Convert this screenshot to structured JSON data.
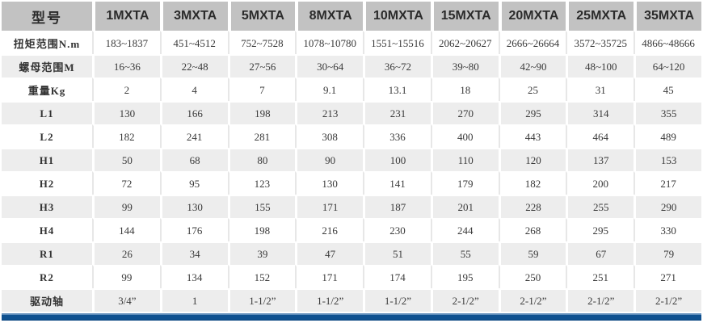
{
  "chart_data": {
    "type": "table",
    "header_label": "型号",
    "columns": [
      "1MXTA",
      "3MXTA",
      "5MXTA",
      "8MXTA",
      "10MXTA",
      "15MXTA",
      "20MXTA",
      "25MXTA",
      "35MXTA"
    ],
    "rows": [
      {
        "label": "扭矩范围N.m",
        "values": [
          "183~1837",
          "451~4512",
          "752~7528",
          "1078~10780",
          "1551~15516",
          "2062~20627",
          "2666~26664",
          "3572~35725",
          "4866~48666"
        ]
      },
      {
        "label": "螺母范围M",
        "values": [
          "16~36",
          "22~48",
          "27~56",
          "30~64",
          "36~72",
          "39~80",
          "42~90",
          "48~100",
          "64~120"
        ]
      },
      {
        "label": "重量Kg",
        "values": [
          "2",
          "4",
          "7",
          "9.1",
          "13.1",
          "18",
          "25",
          "31",
          "45"
        ]
      },
      {
        "label": "L1",
        "values": [
          "130",
          "166",
          "198",
          "213",
          "231",
          "270",
          "295",
          "314",
          "355"
        ]
      },
      {
        "label": "L2",
        "values": [
          "182",
          "241",
          "281",
          "308",
          "336",
          "400",
          "443",
          "464",
          "489"
        ]
      },
      {
        "label": "H1",
        "values": [
          "50",
          "68",
          "80",
          "90",
          "100",
          "110",
          "120",
          "137",
          "153"
        ]
      },
      {
        "label": "H2",
        "values": [
          "72",
          "95",
          "123",
          "130",
          "141",
          "179",
          "182",
          "200",
          "217"
        ]
      },
      {
        "label": "H3",
        "values": [
          "99",
          "130",
          "155",
          "171",
          "187",
          "201",
          "228",
          "255",
          "290"
        ]
      },
      {
        "label": "H4",
        "values": [
          "144",
          "176",
          "198",
          "216",
          "230",
          "244",
          "268",
          "295",
          "330"
        ]
      },
      {
        "label": "R1",
        "values": [
          "26",
          "34",
          "39",
          "47",
          "51",
          "55",
          "59",
          "67",
          "79"
        ]
      },
      {
        "label": "R2",
        "values": [
          "99",
          "134",
          "152",
          "171",
          "174",
          "195",
          "250",
          "251",
          "271"
        ]
      },
      {
        "label": "驱动轴",
        "values": [
          "3/4”",
          "1",
          "1-1/2”",
          "1-1/2”",
          "1-1/2”",
          "2-1/2”",
          "2-1/2”",
          "2-1/2”",
          "2-1/2”"
        ]
      }
    ],
    "layout": {
      "stripe_pattern": "rows alternate white / light-gray starting white",
      "legend": "none",
      "grid": "white gaps between columns on striped rows, faint gray lines on white rows"
    }
  },
  "colors": {
    "header_bg": "#c2c2c2",
    "header_text": "#2b2b2b",
    "stripe_bg": "#ededed",
    "body_text": "#3a3a3a",
    "accent_bar_blue": "#0f5190",
    "accent_bar_highlight": "#5d8cba"
  }
}
